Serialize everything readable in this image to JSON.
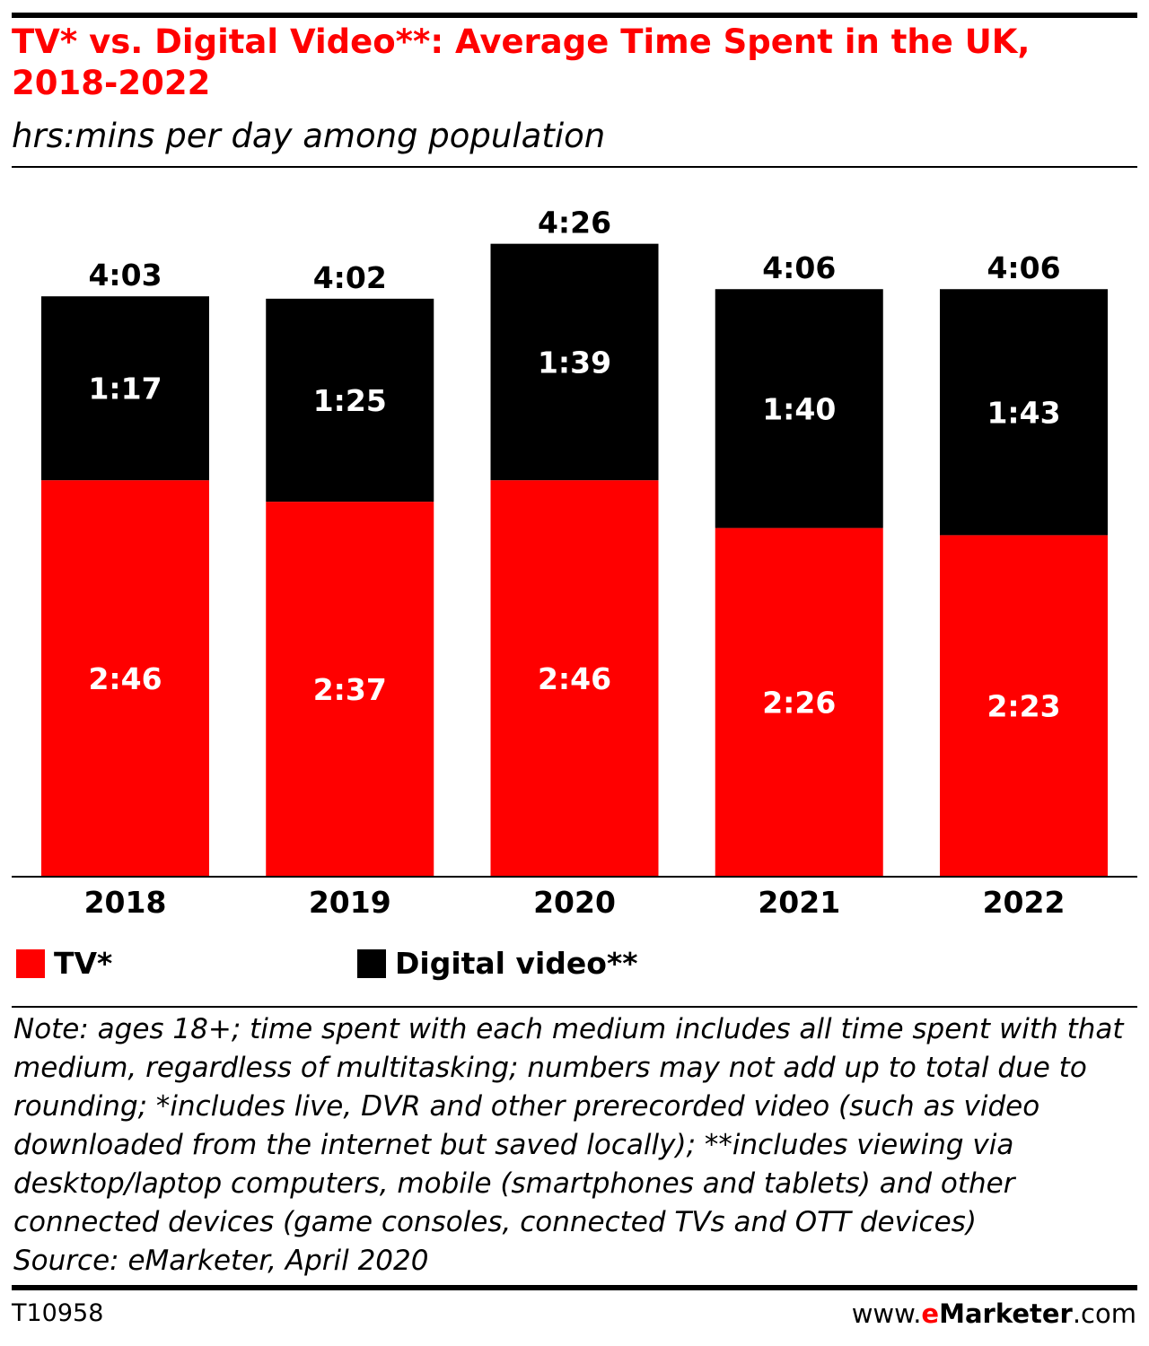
{
  "colors": {
    "tv": "#ff0000",
    "digital": "#000000",
    "title": "#ff0000",
    "bar_label": "#ffffff",
    "total_label": "#000000"
  },
  "header": {
    "title": "TV* vs. Digital Video**: Average Time Spent in the UK, 2018-2022",
    "subtitle": "hrs:mins per day among population"
  },
  "legend": {
    "tv": "TV*",
    "digital": "Digital video**"
  },
  "chart_data": {
    "type": "bar",
    "stacked": true,
    "title": "TV* vs. Digital Video**: Average Time Spent in the UK, 2018-2022",
    "subtitle": "hrs:mins per day among population",
    "categories": [
      "2018",
      "2019",
      "2020",
      "2021",
      "2022"
    ],
    "series": [
      {
        "name": "TV*",
        "color": "#ff0000",
        "values_minutes": [
          166,
          157,
          166,
          146,
          143
        ],
        "labels": [
          "2:46",
          "2:37",
          "2:46",
          "2:26",
          "2:23"
        ]
      },
      {
        "name": "Digital video**",
        "color": "#000000",
        "values_minutes": [
          77,
          85,
          99,
          100,
          103
        ],
        "labels": [
          "1:17",
          "1:25",
          "1:39",
          "1:40",
          "1:43"
        ]
      }
    ],
    "totals_minutes": [
      243,
      242,
      266,
      246,
      246
    ],
    "total_labels": [
      "4:03",
      "4:02",
      "4:26",
      "4:06",
      "4:06"
    ],
    "ylim_minutes": [
      0,
      266
    ],
    "grid": false,
    "legend_position": "bottom-left"
  },
  "note": "Note: ages 18+; time spent with each medium includes all time spent with that medium, regardless of multitasking; numbers may not add up to total due to rounding; *includes live, DVR and other prerecorded video (such as video downloaded from the internet but saved locally); **includes viewing via desktop/laptop computers, mobile (smartphones and tablets) and other connected devices (game consoles, connected TVs and OTT devices)",
  "source": "Source: eMarketer, April 2020",
  "footer": {
    "chart_id": "T10958",
    "brand_prefix": "www.",
    "brand_e": "e",
    "brand_name": "Marketer",
    "brand_suffix": ".com"
  }
}
